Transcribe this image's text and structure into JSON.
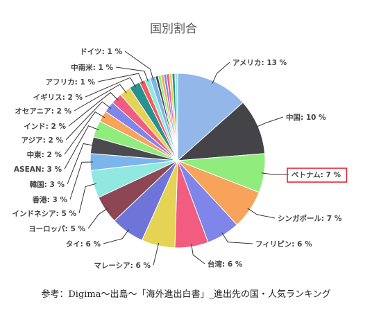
{
  "chart_data": {
    "type": "pie",
    "title": "国別割合",
    "highlight_color": "#e0262e",
    "slices": [
      {
        "name": "アメリカ",
        "value": 13,
        "label": "アメリカ: 13 %",
        "color": "#92b7e8"
      },
      {
        "name": "中国",
        "value": 10,
        "label": "中国: 10 %",
        "color": "#434348"
      },
      {
        "name": "ベトナム",
        "value": 7,
        "label": "ベトナム: 7 %",
        "color": "#90ed7d",
        "highlighted": true
      },
      {
        "name": "シンガポール",
        "value": 7,
        "label": "シンガポール: 7 %",
        "color": "#f7a35c"
      },
      {
        "name": "フィリピン",
        "value": 6,
        "label": "フィリピン: 6 %",
        "color": "#8085e9"
      },
      {
        "name": "台湾",
        "value": 6,
        "label": "台湾: 6 %",
        "color": "#f15c80"
      },
      {
        "name": "マレーシア",
        "value": 6,
        "label": "マレーシア: 6 %",
        "color": "#e4d354"
      },
      {
        "name": "タイ",
        "value": 6,
        "label": "タイ: 6 %",
        "color": "#6f74d8"
      },
      {
        "name": "ヨーロッパ",
        "value": 5,
        "label": "ヨーロッパ: 5 %",
        "color": "#8d4653"
      },
      {
        "name": "インドネシア",
        "value": 5,
        "label": "インドネシア: 5 %",
        "color": "#91e8e1"
      },
      {
        "name": "香港",
        "value": 3,
        "label": "香港: 3 %",
        "color": "#7cb5ec"
      },
      {
        "name": "韓国",
        "value": 3,
        "label": "韓国: 3 %",
        "color": "#4a4a4f"
      },
      {
        "name": "ASEAN",
        "value": 3,
        "label": "ASEAN: 3 %",
        "color": "#90ed7d"
      },
      {
        "name": "中東",
        "value": 2,
        "label": "中東: 2 %",
        "color": "#f7a35c"
      },
      {
        "name": "アジア",
        "value": 2,
        "label": "アジア: 2 %",
        "color": "#8085e9"
      },
      {
        "name": "インド",
        "value": 2,
        "label": "インド: 2 %",
        "color": "#f15c80"
      },
      {
        "name": "オセアニア",
        "value": 2,
        "label": "オセアニア: 2 %",
        "color": "#e4d354"
      },
      {
        "name": "イギリス",
        "value": 2,
        "label": "イギリス: 2 %",
        "color": "#2b908f"
      },
      {
        "name": "アフリカ",
        "value": 1,
        "label": "アフリカ: 1 %",
        "color": "#f45b5b"
      },
      {
        "name": "中南米",
        "value": 1,
        "label": "中南米: 1 %",
        "color": "#91e8e1"
      },
      {
        "name": "ドイツ",
        "value": 1,
        "label": "ドイツ: 1 %",
        "color": "#7cb5ec"
      },
      {
        "name": "",
        "value": 0.5,
        "label": "",
        "color": "#434348"
      },
      {
        "name": "",
        "value": 0.5,
        "label": "",
        "color": "#90ed7d"
      },
      {
        "name": "",
        "value": 0.5,
        "label": "",
        "color": "#f7a35c"
      },
      {
        "name": "",
        "value": 0.5,
        "label": "",
        "color": "#8085e9"
      },
      {
        "name": "",
        "value": 0.5,
        "label": "",
        "color": "#f15c80"
      },
      {
        "name": "",
        "value": 0.5,
        "label": "",
        "color": "#e4d354"
      },
      {
        "name": "",
        "value": 0.5,
        "label": "",
        "color": "#2b908f"
      },
      {
        "name": "",
        "value": 0.5,
        "label": "",
        "color": "#91e8e1"
      }
    ]
  },
  "caption": "参考：Digima〜出島〜「海外進出白書」_進出先の国・人気ランキング"
}
